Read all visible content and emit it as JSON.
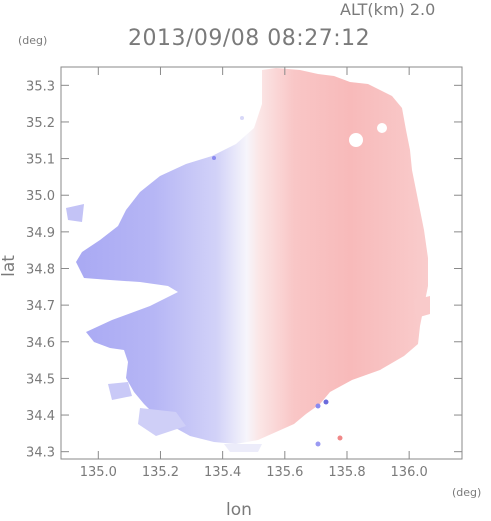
{
  "header": {
    "altitude": "ALT(km) 2.0",
    "datetime": "2013/09/08 08:27:12"
  },
  "chart_data": {
    "type": "heatmap",
    "title": "2013/09/08 08:27:12",
    "subtitle": "ALT(km) 2.0",
    "xlabel": "lon",
    "ylabel": "lat",
    "x_unit": "(deg)",
    "y_unit": "(deg)",
    "xlim": [
      134.88,
      136.17
    ],
    "ylim": [
      34.28,
      35.35
    ],
    "x_ticks": [
      "135.0",
      "135.2",
      "135.4",
      "135.6",
      "135.8",
      "136.0"
    ],
    "x_tick_values": [
      135.0,
      135.2,
      135.4,
      135.6,
      135.8,
      136.0
    ],
    "y_ticks": [
      "34.3",
      "34.4",
      "34.5",
      "34.6",
      "34.7",
      "34.8",
      "34.9",
      "35.0",
      "35.1",
      "35.2",
      "35.3"
    ],
    "y_tick_values": [
      34.3,
      34.4,
      34.5,
      34.6,
      34.7,
      34.8,
      34.9,
      35.0,
      35.1,
      35.2,
      35.3
    ],
    "radar_center": [
      135.52,
      34.82
    ],
    "colors": {
      "approaching": "#b3b3f5",
      "receding": "#f7b1b1",
      "zero": "#f7f5f9"
    },
    "grid": false
  }
}
